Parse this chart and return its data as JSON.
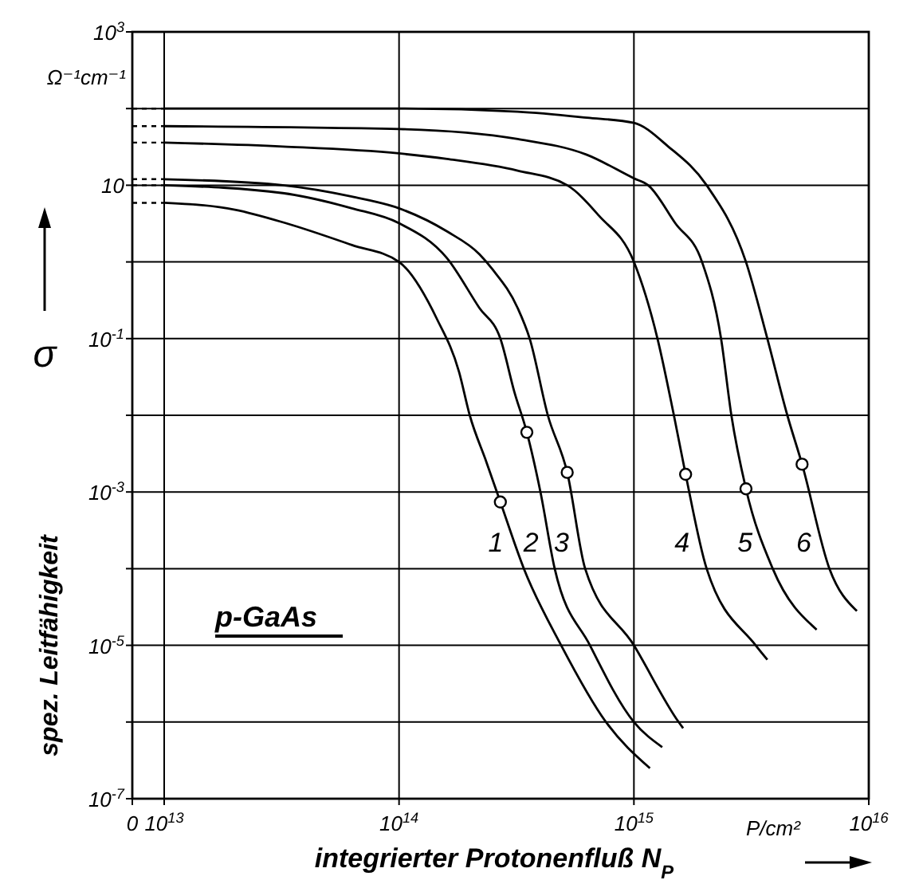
{
  "chart_data": {
    "type": "line",
    "xlabel": "integrierter Protonenfluß N$_{P}$",
    "ylabel": "spez. Leitfähigkeit",
    "annotations": [
      "p-GaAs",
      "Ω⁻¹cm⁻¹",
      "σ",
      "P/cm²"
    ],
    "log": "xy",
    "grid": true,
    "marker": "none",
    "line_style": "solid",
    "xlim": [
      0,
      1e+16
    ],
    "xticks": [
      0,
      {
        "value": 10000000000000.0,
        "label": "10$^{13}$"
      },
      {
        "value": 100000000000000.0,
        "label": "10$^{14}$"
      },
      {
        "value": 1000000000000000.0,
        "label": "10$^{15}$"
      },
      {
        "value": 1e+16,
        "label": "10$^{16}$"
      }
    ],
    "ylim": [
      1e-07,
      1000
    ],
    "yticks": [
      {
        "value": 1e-07,
        "label": "10$^{-7}$"
      },
      {
        "value": 1e-05,
        "label": "10$^{-5}$"
      },
      {
        "value": 0.001,
        "label": "10$^{-3}$"
      },
      {
        "value": 0.1,
        "label": "10$^{-1}$"
      },
      10,
      {
        "value": 1000,
        "label": "10$^{3}$"
      }
    ],
    "series": [
      {
        "name": "1",
        "color": "#000000",
        "x": [
          10000000000000.0,
          20000000000000.0,
          33000000000000.0,
          63000000000000.0,
          100000000000000.0,
          145000000000000.0,
          180000000000000.0,
          200000000000000.0,
          235000000000000.0,
          270000000000000.0,
          340000000000000.0,
          490000000000000.0,
          760000000000000.0,
          1170000000000000.0
        ],
        "values": [
          5.9,
          4.8,
          3.2,
          1.66,
          1.0,
          0.18,
          0.037,
          0.01,
          0.0025,
          0.00074,
          0.0001,
          1e-05,
          1e-06,
          2.5e-07
        ]
      },
      {
        "name": "2",
        "color": "#000000",
        "x": [
          10000000000000.0,
          32000000000000.0,
          63000000000000.0,
          100000000000000.0,
          160000000000000.0,
          220000000000000.0,
          270000000000000.0,
          310000000000000.0,
          350000000000000.0,
          400000000000000.0,
          460000000000000.0,
          650000000000000.0,
          1000000000000000.0,
          1320000000000000.0
        ],
        "values": [
          10,
          7.9,
          5.0,
          3.2,
          1.12,
          0.25,
          0.1,
          0.02,
          0.006,
          0.001,
          0.0001,
          1e-05,
          1e-06,
          4.7e-07
        ]
      },
      {
        "name": "3",
        "color": "#000000",
        "x": [
          10000000000000.0,
          32000000000000.0,
          63000000000000.0,
          100000000000000.0,
          160000000000000.0,
          220000000000000.0,
          250000000000000.0,
          320000000000000.0,
          360000000000000.0,
          430000000000000.0,
          520000000000000.0,
          620000000000000.0,
          1000000000000000.0,
          1550000000000000.0,
          1620000000000000.0
        ],
        "values": [
          12,
          10,
          7.1,
          5.0,
          2.5,
          1.26,
          0.8,
          0.25,
          0.1,
          0.01,
          0.0018,
          0.0001,
          1e-05,
          1e-06,
          8.3e-07
        ]
      },
      {
        "name": "4",
        "color": "#000000",
        "x": [
          10000000000000.0,
          32000000000000.0,
          100000000000000.0,
          160000000000000.0,
          320000000000000.0,
          520000000000000.0,
          710000000000000.0,
          1000000000000000.0,
          1260000000000000.0,
          1480000000000000.0,
          1660000000000000.0,
          2040000000000000.0,
          3300000000000000.0,
          3700000000000000.0
        ],
        "values": [
          36,
          32,
          26,
          22,
          15.5,
          10,
          4.0,
          1.0,
          0.1,
          0.01,
          0.0017,
          0.0001,
          1e-05,
          6.5e-06
        ]
      },
      {
        "name": "5",
        "color": "#000000",
        "x": [
          10000000000000.0,
          100000000000000.0,
          320000000000000.0,
          630000000000000.0,
          1000000000000000.0,
          1150000000000000.0,
          1500000000000000.0,
          1950000000000000.0,
          2350000000000000.0,
          2600000000000000.0,
          3000000000000000.0,
          3900000000000000.0,
          6000000000000000.0
        ],
        "values": [
          59,
          54,
          40,
          25,
          12.3,
          10,
          3.2,
          1.0,
          0.1,
          0.01,
          0.0011,
          0.0001,
          1.6e-05
        ]
      },
      {
        "name": "6",
        "color": "#000000",
        "x": [
          10000000000000.0,
          100000000000000.0,
          320000000000000.0,
          630000000000000.0,
          1000000000000000.0,
          1400000000000000.0,
          2040000000000000.0,
          3000000000000000.0,
          3700000000000000.0,
          4500000000000000.0,
          5200000000000000.0,
          6800000000000000.0,
          8900000000000000.0
        ],
        "values": [
          100,
          100,
          91,
          76,
          65,
          32,
          10,
          1.0,
          0.1,
          0.01,
          0.0023,
          0.0001,
          2.8e-05
        ]
      },
      {
        "type": "scatter",
        "marker": "circle",
        "color": "#000000",
        "x": [
          270000000000000.0,
          350000000000000.0,
          520000000000000.0,
          1660000000000000.0,
          3000000000000000.0,
          5200000000000000.0
        ],
        "values": [
          0.00074,
          0.006,
          0.0018,
          0.0017,
          0.0011,
          0.0023
        ]
      }
    ]
  }
}
